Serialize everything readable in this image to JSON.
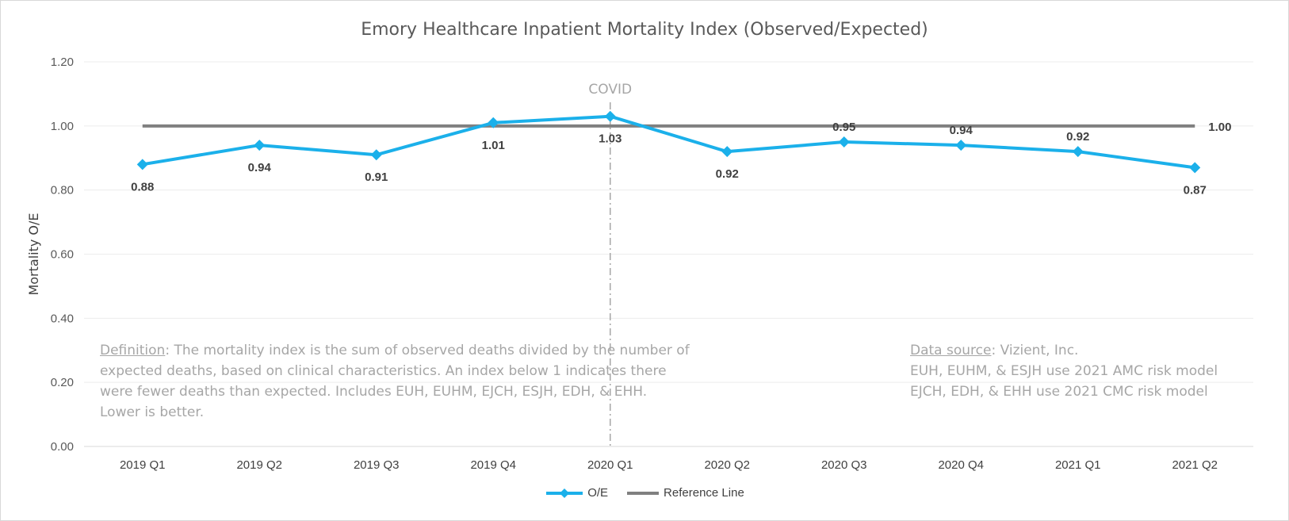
{
  "chart_data": {
    "type": "line",
    "title": "Emory Healthcare Inpatient Mortality Index (Observed/Expected)",
    "ylabel": "Mortality O/E",
    "xlabel": "",
    "ylim": [
      0,
      1.2
    ],
    "yticks": [
      "0.00",
      "0.20",
      "0.40",
      "0.60",
      "0.80",
      "1.00",
      "1.20"
    ],
    "categories": [
      "2019 Q1",
      "2019 Q2",
      "2019 Q3",
      "2019 Q4",
      "2020 Q1",
      "2020 Q2",
      "2020 Q3",
      "2020 Q4",
      "2021 Q1",
      "2021 Q2"
    ],
    "series": [
      {
        "name": "O/E",
        "color": "#1bb0ea",
        "marker": "diamond",
        "values": [
          0.88,
          0.94,
          0.91,
          1.01,
          1.03,
          0.92,
          0.95,
          0.94,
          0.92,
          0.87
        ],
        "labels": [
          "0.88",
          "0.94",
          "0.91",
          "1.01",
          "1.03",
          "0.92",
          "0.95",
          "0.94",
          "0.92",
          "0.87"
        ],
        "label_positions": [
          "below",
          "below",
          "below",
          "below",
          "below",
          "below",
          "above",
          "above",
          "above",
          "below"
        ]
      },
      {
        "name": "Reference Line",
        "color": "#808080",
        "values": [
          1.0,
          1.0,
          1.0,
          1.0,
          1.0,
          1.0,
          1.0,
          1.0,
          1.0,
          1.0
        ],
        "end_label": "1.00"
      }
    ],
    "grid": true,
    "legend_position": "bottom",
    "annotation": {
      "label": "COVID",
      "at_category": "2020 Q1",
      "style": "dash-dot vertical line"
    }
  },
  "notes": {
    "definition_label": "Definition",
    "definition_line1": ": The mortality index is the sum of observed deaths divided by the number of",
    "definition_line2": "expected deaths, based on clinical characteristics. An index below 1 indicates there",
    "definition_line3": "were fewer deaths than expected. Includes EUH, EUHM, EJCH, ESJH, EDH, & EHH.",
    "definition_line4": "Lower is better.",
    "source_label": "Data source",
    "source_line1": ": Vizient, Inc.",
    "source_line2": "EUH, EUHM, & ESJH use 2021 AMC risk model",
    "source_line3": "EJCH, EDH, & EHH use 2021 CMC risk model"
  },
  "legend": {
    "oe": "O/E",
    "ref": "Reference Line"
  }
}
